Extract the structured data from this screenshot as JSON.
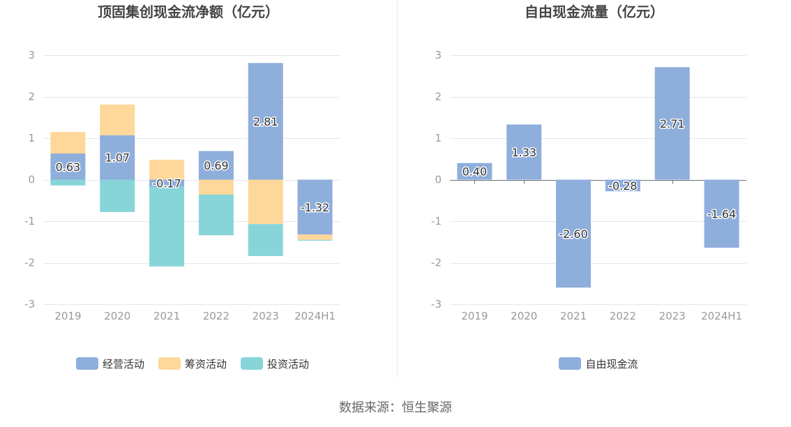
{
  "chart_data": [
    {
      "type": "bar",
      "stacked": true,
      "title": "顶固集创现金流净额（亿元）",
      "categories": [
        "2019",
        "2020",
        "2021",
        "2022",
        "2023",
        "2024H1"
      ],
      "ylim": [
        -3,
        3
      ],
      "yticks": [
        3,
        2,
        1,
        0,
        -1,
        -2,
        -3
      ],
      "grid": true,
      "legend": "bottom",
      "series": [
        {
          "name": "经营活动",
          "color": "#8eaedc",
          "values": [
            0.63,
            1.07,
            -0.17,
            0.69,
            2.81,
            -1.32
          ],
          "labels": [
            "0.63",
            "1.07",
            "-0.17",
            "0.69",
            "2.81",
            "-1.32"
          ]
        },
        {
          "name": "筹资活动",
          "color": "#fdd89a",
          "values": [
            0.52,
            0.74,
            0.48,
            -0.36,
            -1.07,
            -0.13
          ]
        },
        {
          "name": "投资活动",
          "color": "#88d5d9",
          "values": [
            -0.14,
            -0.78,
            -1.92,
            -0.98,
            -0.77,
            -0.02
          ]
        }
      ]
    },
    {
      "type": "bar",
      "stacked": false,
      "title": "自由现金流量（亿元）",
      "categories": [
        "2019",
        "2020",
        "2021",
        "2022",
        "2023",
        "2024H1"
      ],
      "ylim": [
        -3,
        3
      ],
      "yticks": [
        3,
        2,
        1,
        0,
        -1,
        -2,
        -3
      ],
      "grid": true,
      "legend": "bottom",
      "series": [
        {
          "name": "自由现金流",
          "color": "#8eaedc",
          "values": [
            0.4,
            1.33,
            -2.6,
            -0.28,
            2.71,
            -1.64
          ],
          "labels": [
            "0.40",
            "1.33",
            "-2.60",
            "-0.28",
            "2.71",
            "-1.64"
          ]
        }
      ]
    }
  ],
  "source": "数据来源：恒生聚源"
}
